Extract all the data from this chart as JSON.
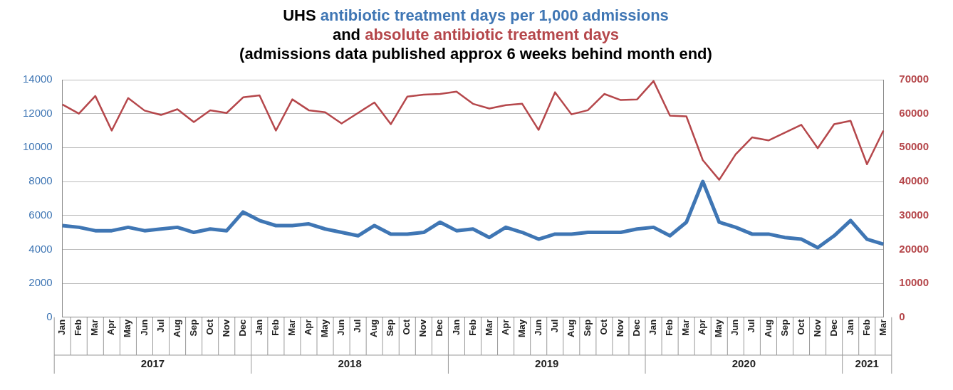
{
  "chart_data": {
    "type": "line",
    "title": "UHS",
    "subtitle": "(admissions data published approx 6 weeks behind month end)",
    "annotations": [
      "and",
      "2017",
      "2018",
      "2019",
      "2020",
      "2021"
    ],
    "categories": [
      "Jan",
      "Feb",
      "Mar",
      "Apr",
      "May",
      "Jun",
      "Jul",
      "Aug",
      "Sep",
      "Oct",
      "Nov",
      "Dec",
      "Jan",
      "Feb",
      "Mar",
      "Apr",
      "May",
      "Jun",
      "Jul",
      "Aug",
      "Sep",
      "Oct",
      "Nov",
      "Dec",
      "Jan",
      "Feb",
      "Mar",
      "Apr",
      "May",
      "Jun",
      "Jul",
      "Aug",
      "Sep",
      "Oct",
      "Nov",
      "Dec",
      "Jan",
      "Feb",
      "Mar",
      "Apr",
      "May",
      "Jun",
      "Jul",
      "Aug",
      "Sep",
      "Oct",
      "Nov",
      "Dec",
      "Jan",
      "Feb",
      "Mar"
    ],
    "series": [
      {
        "name": "antibiotic treatment days per 1,000 admissions",
        "color": "#3f76b4",
        "values": [
          5400,
          5300,
          5100,
          5100,
          5300,
          5100,
          5200,
          5300,
          5000,
          5200,
          5100,
          6200,
          5700,
          5400,
          5400,
          5500,
          5200,
          5000,
          4800,
          5400,
          4900,
          4900,
          5000,
          5600,
          5100,
          5200,
          4700,
          5300,
          5000,
          4600,
          4900,
          4900,
          5000,
          5000,
          5000,
          5200,
          5300,
          4800,
          5600,
          8000,
          5600,
          5300,
          4900,
          4900,
          4700,
          4600,
          4100,
          4800,
          5700,
          4600,
          4300
        ]
      },
      {
        "name": "absolute antibiotic treatment days",
        "color": "#b5474b",
        "axis": "y2",
        "values": [
          62700,
          60000,
          65200,
          55000,
          64600,
          60900,
          59600,
          61300,
          57500,
          61000,
          60200,
          64800,
          65400,
          55000,
          64200,
          61000,
          60400,
          57100,
          60200,
          63300,
          56900,
          65000,
          65600,
          65800,
          66500,
          62900,
          61500,
          62500,
          62900,
          55200,
          66300,
          59800,
          61000,
          65800,
          64000,
          64200,
          69600,
          59400,
          59200,
          46300,
          40500,
          48000,
          53000,
          52100,
          54400,
          56700,
          49800,
          56900,
          57900,
          45100,
          55000
        ]
      }
    ],
    "ylim": [
      0,
      14000
    ],
    "yticks": [
      0,
      2000,
      4000,
      6000,
      8000,
      10000,
      12000,
      14000
    ],
    "y2lim": [
      0,
      70000
    ],
    "y2ticks": [
      0,
      10000,
      20000,
      30000,
      40000,
      50000,
      60000,
      70000
    ],
    "grid": "y",
    "legend": false,
    "marker": "none",
    "line_style": "solid"
  }
}
